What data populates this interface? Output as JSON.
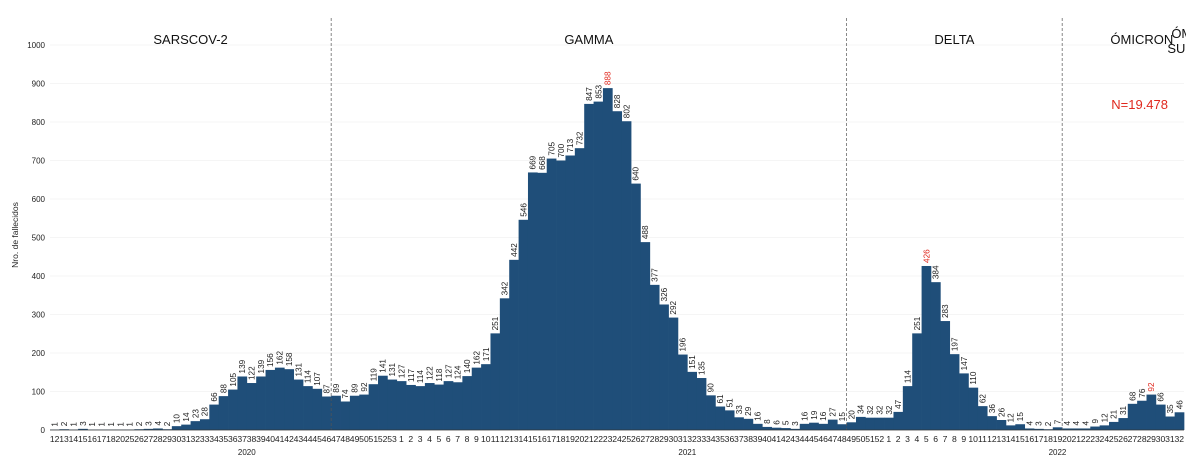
{
  "chart_data": {
    "type": "bar",
    "ylabel": "Nro. de fallecidos",
    "ylim": [
      0,
      1000
    ],
    "yticks": [
      0,
      100,
      200,
      300,
      400,
      500,
      600,
      700,
      800,
      900,
      1000
    ],
    "n_total_label": "N=19.478",
    "bar_color": "#1f4e79",
    "highlight_color": "#e0281e",
    "variants": [
      {
        "label": "SARSCOV-2",
        "start_index": 0
      },
      {
        "label": "GAMMA",
        "start_index": 30
      },
      {
        "label": "DELTA",
        "start_index": 85
      },
      {
        "label": "ÓMICRON",
        "start_index": 108
      },
      {
        "label": "ÓMICRON SUBLINAJE",
        "start_index": 125
      }
    ],
    "years": [
      {
        "label": "2020",
        "start_index": 0
      },
      {
        "label": "2021",
        "start_index": 42
      },
      {
        "label": "2022",
        "start_index": 94
      }
    ],
    "categories": [
      "12",
      "13",
      "14",
      "15",
      "16",
      "17",
      "18",
      "20",
      "25",
      "26",
      "27",
      "28",
      "29",
      "30",
      "31",
      "32",
      "33",
      "34",
      "35",
      "36",
      "37",
      "38",
      "39",
      "40",
      "41",
      "42",
      "43",
      "44",
      "45",
      "46",
      "47",
      "48",
      "49",
      "50",
      "51",
      "52",
      "53",
      "1",
      "2",
      "3",
      "4",
      "5",
      "6",
      "7",
      "8",
      "9",
      "10",
      "11",
      "12",
      "13",
      "14",
      "15",
      "16",
      "17",
      "18",
      "19",
      "20",
      "21",
      "22",
      "23",
      "24",
      "25",
      "26",
      "27",
      "28",
      "29",
      "30",
      "31",
      "32",
      "33",
      "34",
      "35",
      "36",
      "37",
      "38",
      "39",
      "40",
      "41",
      "42",
      "43",
      "44",
      "45",
      "46",
      "47",
      "48",
      "49",
      "50",
      "51",
      "52",
      "1",
      "2",
      "3",
      "4",
      "5",
      "6",
      "7",
      "8",
      "9",
      "10",
      "11",
      "12",
      "13",
      "14",
      "15",
      "16",
      "17",
      "18",
      "19",
      "20",
      "21",
      "22",
      "23",
      "24",
      "25",
      "26",
      "27",
      "28",
      "29",
      "30",
      "31",
      "32"
    ],
    "values": [
      1,
      2,
      1,
      3,
      1,
      1,
      1,
      1,
      1,
      2,
      3,
      4,
      2,
      10,
      14,
      23,
      28,
      66,
      88,
      105,
      139,
      122,
      139,
      156,
      162,
      158,
      131,
      114,
      107,
      87,
      89,
      74,
      89,
      92,
      119,
      141,
      131,
      127,
      117,
      114,
      122,
      118,
      127,
      124,
      140,
      162,
      171,
      251,
      342,
      442,
      546,
      669,
      668,
      705,
      700,
      713,
      732,
      847,
      853,
      888,
      828,
      802,
      640,
      488,
      377,
      326,
      292,
      196,
      151,
      135,
      90,
      61,
      51,
      33,
      29,
      16,
      8,
      6,
      5,
      3,
      16,
      19,
      16,
      27,
      15,
      20,
      34,
      32,
      32,
      32,
      47,
      114,
      251,
      426,
      384,
      283,
      197,
      147,
      110,
      62,
      36,
      26,
      12,
      15,
      4,
      3,
      2,
      7,
      4,
      4,
      4,
      9,
      12,
      21,
      31,
      68,
      76,
      92,
      66,
      35,
      46
    ],
    "highlight_indices": [
      59,
      93,
      117
    ]
  }
}
